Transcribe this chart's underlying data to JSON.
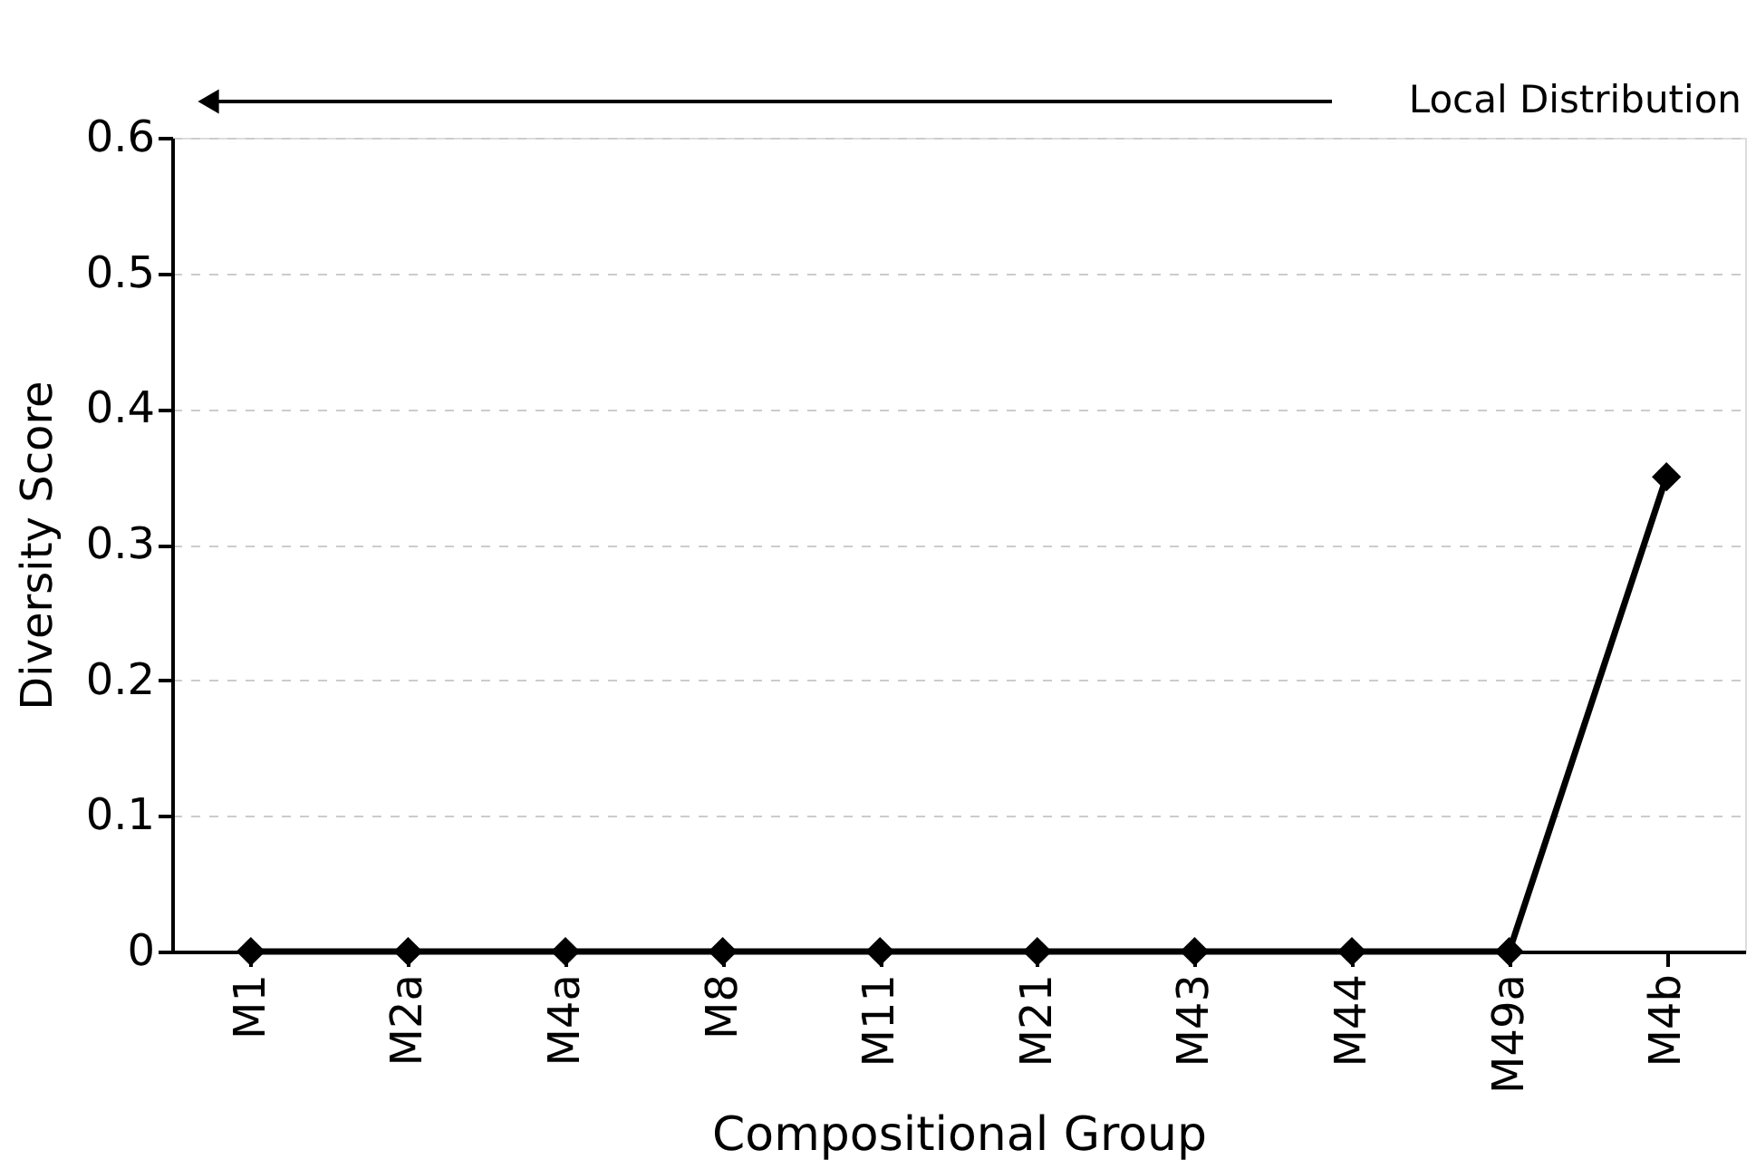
{
  "chart_data": {
    "type": "line",
    "xlabel": "Compositional Group",
    "ylabel": "Diversity Score",
    "categories": [
      "M1",
      "M2a",
      "M4a",
      "M8",
      "M11",
      "M21",
      "M43",
      "M44",
      "M49a",
      "M4b"
    ],
    "series": [
      {
        "color": "#000000",
        "values": [
          0,
          0,
          0,
          0,
          0,
          0,
          0,
          0,
          0,
          0.35
        ]
      }
    ],
    "ylim": [
      0,
      0.6
    ],
    "yticks": [
      0,
      0.1,
      0.2,
      0.3,
      0.4,
      0.5,
      0.6
    ],
    "grid": "y",
    "marker": "diamond",
    "line_style": "solid",
    "annotations": [
      "Local Distribution"
    ]
  }
}
